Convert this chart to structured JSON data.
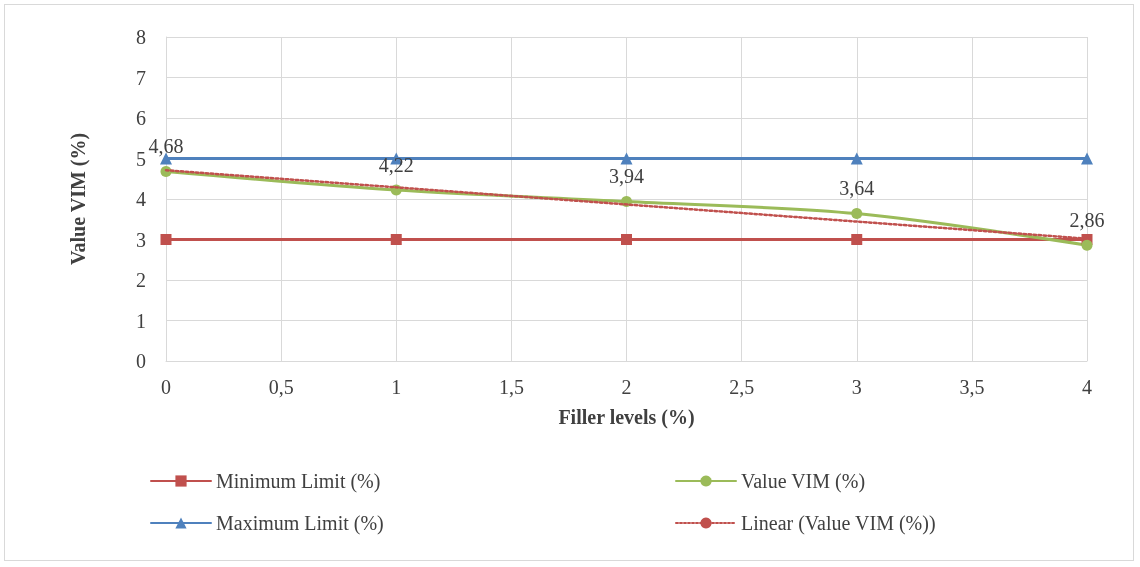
{
  "chart_data": {
    "type": "line",
    "xlabel": "Filler levels (%)",
    "ylabel": "Value VIM (%)",
    "xlim": [
      0,
      4
    ],
    "xticks": [
      0,
      {
        "value": 0.5,
        "label": "0,5"
      },
      1,
      {
        "value": 1.5,
        "label": "1,5"
      },
      2,
      {
        "value": 2.5,
        "label": "2,5"
      },
      3,
      {
        "value": 3.5,
        "label": "3,5"
      },
      4
    ],
    "ylim": [
      0,
      8
    ],
    "yticks": [
      0,
      1,
      2,
      3,
      4,
      5,
      6,
      7,
      8
    ],
    "grid": true,
    "legend": "bottom",
    "x": [
      0,
      1,
      2,
      3,
      4
    ],
    "series": [
      {
        "name": "Minimum Limit (%)",
        "color": "#c0504d",
        "marker": "square",
        "values": [
          3,
          3,
          3,
          3,
          3
        ]
      },
      {
        "name": "Value VIM (%)",
        "color": "#9bbb59",
        "marker": "circle",
        "values": [
          4.68,
          4.22,
          3.94,
          3.64,
          2.86
        ],
        "value_labels": [
          "4,68",
          "4,22",
          "3,94",
          "3,64",
          "2,86"
        ]
      },
      {
        "name": "Maximum Limit (%)",
        "color": "#4f81bd",
        "marker": "triangle",
        "values": [
          5,
          5,
          5,
          5,
          5
        ]
      },
      {
        "name": "Linear (Value VIM (%))",
        "color": "#c0504d",
        "marker": "none",
        "line_style": "dotted",
        "x": [
          0,
          4
        ],
        "values": [
          4.71,
          3.02
        ]
      }
    ]
  }
}
